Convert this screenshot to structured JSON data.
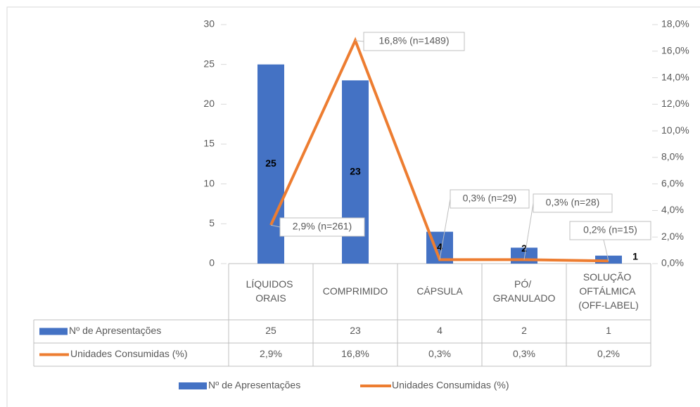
{
  "chart_data": {
    "type": "bar_line_table",
    "categories": [
      "LÍQUIDOS ORAIS",
      "COMPRIMIDO",
      "CÁPSULA",
      "PÓ/ GRANULADO",
      "SOLUÇÃO OFTÁLMICA (OFF-LABEL)"
    ],
    "series": [
      {
        "name": "Nº de Apresentações",
        "type": "bar",
        "color": "#4472c4",
        "values": [
          25,
          23,
          4,
          2,
          1
        ]
      },
      {
        "name": "Unidades Consumidas (%)",
        "type": "line",
        "axis": "y2",
        "color": "#ed7d31",
        "values": [
          2.9,
          16.8,
          0.3,
          0.3,
          0.2
        ],
        "value_labels": [
          "2,9% (n=261)",
          "16,8% (n=1489)",
          "0,3% (n=29)",
          "0,3% (n=28)",
          "0,2% (n=15)"
        ],
        "table_labels": [
          "2,9%",
          "16,8%",
          "0,3%",
          "0,3%",
          "0,2%"
        ]
      }
    ],
    "ylim": [
      0,
      30
    ],
    "yticks": [
      0,
      5,
      10,
      15,
      20,
      25,
      30
    ],
    "y2lim": [
      0,
      18
    ],
    "y2ticks": [
      {
        "value": 0,
        "label": "0,0%"
      },
      {
        "value": 2,
        "label": "2,0%"
      },
      {
        "value": 4,
        "label": "4,0%"
      },
      {
        "value": 6,
        "label": "6,0%"
      },
      {
        "value": 8,
        "label": "8,0%"
      },
      {
        "value": 10,
        "label": "10,0%"
      },
      {
        "value": 12,
        "label": "12,0%"
      },
      {
        "value": 14,
        "label": "14,0%"
      },
      {
        "value": 16,
        "label": "16,0%"
      },
      {
        "value": 18,
        "label": "18,0%"
      }
    ],
    "grid": false,
    "legend": "bottom"
  }
}
